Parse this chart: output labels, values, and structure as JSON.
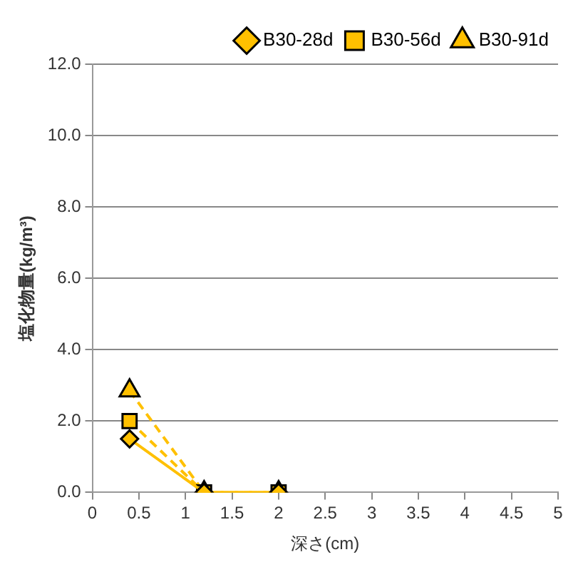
{
  "chart_data": {
    "type": "line",
    "xlabel": "深さ(cm)",
    "ylabel": "塩化物量(kg/m³)",
    "xlim": [
      0,
      5
    ],
    "xticks": [
      0,
      0.5,
      1,
      1.5,
      2,
      2.5,
      3,
      3.5,
      4,
      4.5,
      5
    ],
    "ylim": [
      0,
      12
    ],
    "yticks": [
      {
        "value": 0,
        "label": "0.0"
      },
      {
        "value": 2,
        "label": "2.0"
      },
      {
        "value": 4,
        "label": "4.0"
      },
      {
        "value": 6,
        "label": "6.0"
      },
      {
        "value": 8,
        "label": "8.0"
      },
      {
        "value": 10,
        "label": "10.0"
      },
      {
        "value": 12,
        "label": "12.0"
      }
    ],
    "grid": "y",
    "legend": "top right",
    "series": [
      {
        "name": "B30-28d",
        "color": "#ffc000",
        "marker": "diamond",
        "line_style": "solid",
        "x": [
          0.4,
          1.2,
          2.0
        ],
        "values": [
          1.5,
          0,
          0
        ]
      },
      {
        "name": "B30-56d",
        "color": "#ffc000",
        "marker": "square",
        "line_style": "dashed",
        "x": [
          0.4,
          1.2,
          2.0
        ],
        "values": [
          2.0,
          0,
          0
        ]
      },
      {
        "name": "B30-91d",
        "color": "#ffc000",
        "marker": "triangle",
        "line_style": "dashed",
        "x": [
          0.4,
          1.2,
          2.0
        ],
        "values": [
          2.85,
          0,
          0
        ]
      }
    ]
  }
}
